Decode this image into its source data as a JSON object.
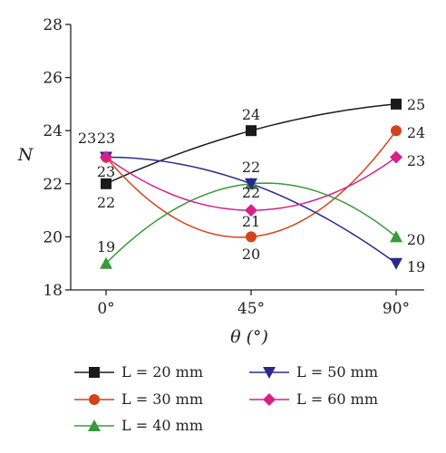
{
  "chart_data": {
    "type": "line",
    "x_categories": [
      "0°",
      "45°",
      "90°"
    ],
    "xlabel": "θ (°)",
    "ylabel": "N",
    "ylim": [
      18,
      28
    ],
    "yticks": [
      "18",
      "20",
      "22",
      "24",
      "26",
      "28"
    ],
    "series": [
      {
        "name": "L = 20 mm",
        "values": [
          22,
          24,
          25
        ],
        "color": "#1a1a1a",
        "marker": "square",
        "labels": [
          "22",
          "24",
          "25"
        ]
      },
      {
        "name": "L = 30 mm",
        "values": [
          23,
          20,
          24
        ],
        "color": "#d4441c",
        "marker": "circle",
        "labels": [
          "23",
          "20",
          "24"
        ]
      },
      {
        "name": "L = 40 mm",
        "values": [
          19,
          22,
          20
        ],
        "color": "#3a9a3a",
        "marker": "triangle-up",
        "labels": [
          "19",
          "22",
          "20"
        ]
      },
      {
        "name": "L = 50 mm",
        "values": [
          23,
          22,
          19
        ],
        "color": "#2b2a8c",
        "marker": "triangle-down",
        "labels": [
          "23",
          "22",
          "19"
        ]
      },
      {
        "name": "L = 60 mm",
        "values": [
          23,
          21,
          23
        ],
        "color": "#d6218a",
        "marker": "diamond",
        "labels": [
          "23",
          "21",
          "23"
        ]
      }
    ],
    "legend_position": "bottom",
    "grid": false
  }
}
